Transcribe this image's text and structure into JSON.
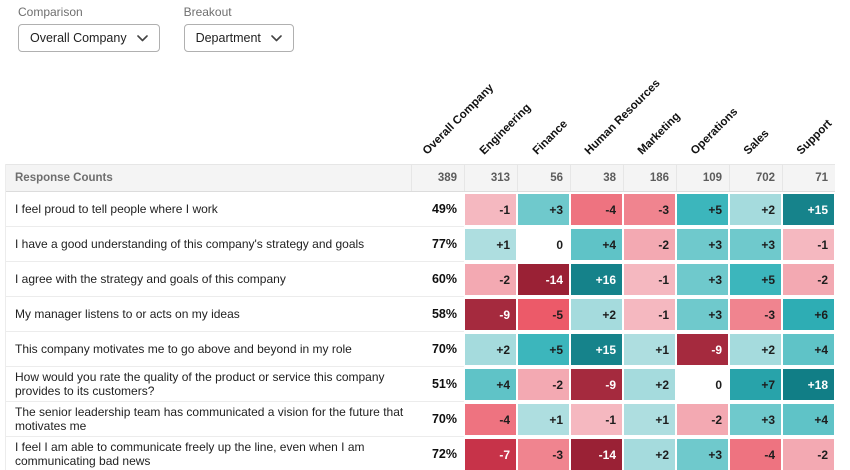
{
  "controls": {
    "comparison_label": "Comparison",
    "comparison_value": "Overall Company",
    "breakout_label": "Breakout",
    "breakout_value": "Department"
  },
  "heatmap": {
    "corner_label": "Response Counts",
    "columns": [
      "Overall Company",
      "Engineering",
      "Finance",
      "Human Resources",
      "Marketing",
      "Operations",
      "Sales",
      "Support"
    ],
    "response_counts": [
      "389",
      "313",
      "56",
      "38",
      "186",
      "109",
      "702",
      "71"
    ],
    "rows": [
      {
        "question": "I feel proud to tell people where I work",
        "percent": "49%",
        "cells": [
          {
            "v": "-1",
            "bg": "#F5B8C0"
          },
          {
            "v": "+3",
            "bg": "#6FC9CC"
          },
          {
            "v": "-4",
            "bg": "#EE7380"
          },
          {
            "v": "-3",
            "bg": "#F0848F"
          },
          {
            "v": "+5",
            "bg": "#3CB6BC"
          },
          {
            "v": "+2",
            "bg": "#A5DBDD"
          },
          {
            "v": "+15",
            "bg": "#16838B"
          }
        ]
      },
      {
        "question": "I have a good understanding of this company's strategy and goals",
        "percent": "77%",
        "cells": [
          {
            "v": "+1",
            "bg": "#AEDEE0"
          },
          {
            "v": "0",
            "bg": "#FFFFFF"
          },
          {
            "v": "+4",
            "bg": "#5FC3C7"
          },
          {
            "v": "-2",
            "bg": "#F3A9B2"
          },
          {
            "v": "+3",
            "bg": "#6FC9CC"
          },
          {
            "v": "+3",
            "bg": "#6FC9CC"
          },
          {
            "v": "-1",
            "bg": "#F5B8C0"
          }
        ]
      },
      {
        "question": "I agree with the strategy and goals of this company",
        "percent": "60%",
        "cells": [
          {
            "v": "-2",
            "bg": "#F3A9B2"
          },
          {
            "v": "-14",
            "bg": "#9A2135"
          },
          {
            "v": "+16",
            "bg": "#15828A"
          },
          {
            "v": "-1",
            "bg": "#F5B8C0"
          },
          {
            "v": "+3",
            "bg": "#6FC9CC"
          },
          {
            "v": "+5",
            "bg": "#3CB6BC"
          },
          {
            "v": "-2",
            "bg": "#F3A9B2"
          }
        ]
      },
      {
        "question": "My manager listens to or acts on my ideas",
        "percent": "58%",
        "cells": [
          {
            "v": "-9",
            "bg": "#A52A3E"
          },
          {
            "v": "-5",
            "bg": "#EC5A69"
          },
          {
            "v": "+2",
            "bg": "#A5DBDD"
          },
          {
            "v": "-1",
            "bg": "#F5B8C0"
          },
          {
            "v": "+3",
            "bg": "#6FC9CC"
          },
          {
            "v": "-3",
            "bg": "#F0848F"
          },
          {
            "v": "+6",
            "bg": "#2EADB4"
          }
        ]
      },
      {
        "question": "This company motivates me to go above and beyond in my role",
        "percent": "70%",
        "cells": [
          {
            "v": "+2",
            "bg": "#A5DBDD"
          },
          {
            "v": "+5",
            "bg": "#3CB6BC"
          },
          {
            "v": "+15",
            "bg": "#16838B"
          },
          {
            "v": "+1",
            "bg": "#AEDEE0"
          },
          {
            "v": "-9",
            "bg": "#A52A3E"
          },
          {
            "v": "+2",
            "bg": "#A5DBDD"
          },
          {
            "v": "+4",
            "bg": "#5FC3C7"
          }
        ]
      },
      {
        "question": "How would you rate the quality of the product or service this company provides to its customers?",
        "percent": "51%",
        "cells": [
          {
            "v": "+4",
            "bg": "#5FC3C7"
          },
          {
            "v": "-2",
            "bg": "#F3A9B2"
          },
          {
            "v": "-9",
            "bg": "#A52A3E"
          },
          {
            "v": "+2",
            "bg": "#A5DBDD"
          },
          {
            "v": "0",
            "bg": "#FFFFFF"
          },
          {
            "v": "+7",
            "bg": "#28A3AA"
          },
          {
            "v": "+18",
            "bg": "#117E86"
          }
        ]
      },
      {
        "question": "The senior leadership team has communicated a vision for the future that motivates me",
        "percent": "70%",
        "cells": [
          {
            "v": "-4",
            "bg": "#EE7380"
          },
          {
            "v": "+1",
            "bg": "#AEDEE0"
          },
          {
            "v": "-1",
            "bg": "#F5B8C0"
          },
          {
            "v": "+1",
            "bg": "#AEDEE0"
          },
          {
            "v": "-2",
            "bg": "#F3A9B2"
          },
          {
            "v": "+3",
            "bg": "#6FC9CC"
          },
          {
            "v": "+4",
            "bg": "#5FC3C7"
          }
        ]
      },
      {
        "question": "I feel I am able to communicate freely up the line, even when I am communicating bad news",
        "percent": "72%",
        "cells": [
          {
            "v": "-7",
            "bg": "#C73349"
          },
          {
            "v": "-3",
            "bg": "#F0848F"
          },
          {
            "v": "-14",
            "bg": "#9A2135"
          },
          {
            "v": "+2",
            "bg": "#A5DBDD"
          },
          {
            "v": "+3",
            "bg": "#6FC9CC"
          },
          {
            "v": "-4",
            "bg": "#EE7380"
          },
          {
            "v": "-2",
            "bg": "#F3A9B2"
          }
        ]
      }
    ]
  },
  "colors": {
    "positive_strong": "#16838B",
    "positive_weak": "#AEDEE0",
    "negative_strong": "#9A2135",
    "negative_weak": "#F5B8C0",
    "neutral": "#FFFFFF",
    "counts_row_bg": "#F4F4F4"
  }
}
